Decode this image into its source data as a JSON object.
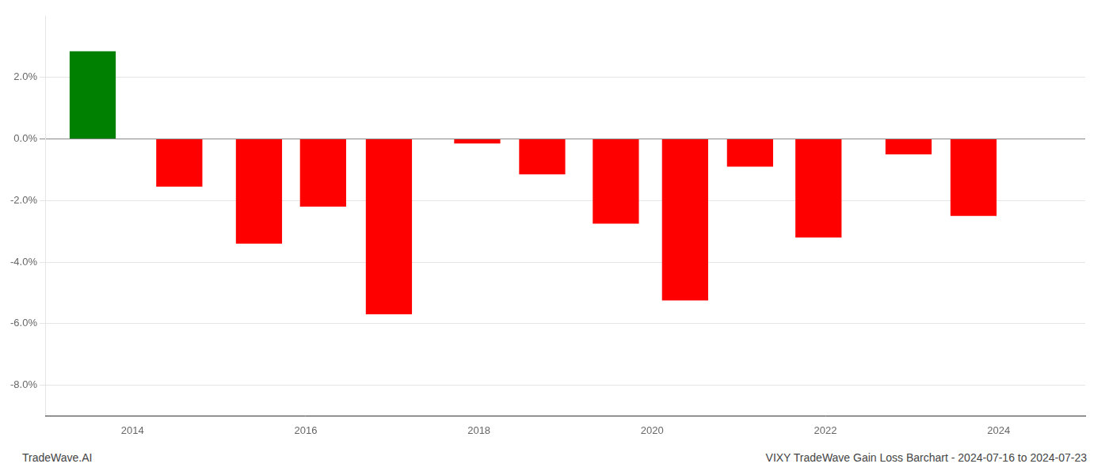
{
  "chart_data": {
    "type": "bar",
    "x": [
      2013.54,
      2014.54,
      2015.46,
      2016.2,
      2016.96,
      2017.98,
      2018.73,
      2019.58,
      2020.38,
      2021.13,
      2021.92,
      2022.96,
      2023.71
    ],
    "values": [
      2.85,
      -1.55,
      -3.4,
      -2.2,
      -5.7,
      -0.15,
      -1.15,
      -2.75,
      -5.25,
      -0.9,
      -3.2,
      -0.5,
      -2.5
    ],
    "colors": [
      "#008000",
      "#ff0000",
      "#ff0000",
      "#ff0000",
      "#ff0000",
      "#ff0000",
      "#ff0000",
      "#ff0000",
      "#ff0000",
      "#ff0000",
      "#ff0000",
      "#ff0000",
      "#ff0000"
    ],
    "xlim": [
      2013.0,
      2025.0
    ],
    "xticks": [
      2014,
      2016,
      2018,
      2020,
      2022,
      2024
    ],
    "ylim": [
      -9.0,
      4.0
    ],
    "yticks": [
      {
        "value": -8.0,
        "label": "-8.0%"
      },
      {
        "value": -6.0,
        "label": "-6.0%"
      },
      {
        "value": -4.0,
        "label": "-4.0%"
      },
      {
        "value": -2.0,
        "label": "-2.0%"
      },
      {
        "value": 0.0,
        "label": "0.0%"
      },
      {
        "value": 2.0,
        "label": "2.0%"
      }
    ],
    "annotations": [
      "TradeWave.AI",
      "VIXY TradeWave Gain Loss Barchart - 2024-07-16 to 2024-07-23"
    ],
    "grid": true
  }
}
